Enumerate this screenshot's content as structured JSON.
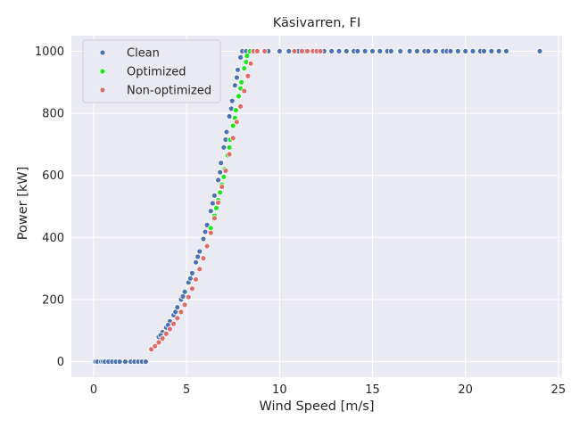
{
  "chart_data": {
    "type": "scatter",
    "title": "Käsivarren, FI",
    "xlabel": "Wind Speed [m/s]",
    "ylabel": "Power [kW]",
    "xlim": [
      -1.2,
      25.2
    ],
    "ylim": [
      -50,
      1050
    ],
    "x_ticks": [
      0,
      5,
      10,
      15,
      20,
      25
    ],
    "x_tick_labels": [
      "0",
      "5",
      "10",
      "15",
      "20",
      "25"
    ],
    "y_ticks": [
      0,
      200,
      400,
      600,
      800,
      1000
    ],
    "y_tick_labels": [
      "0",
      "200",
      "400",
      "600",
      "800",
      "1000"
    ],
    "grid": true,
    "legend_position": "top-left",
    "style": {
      "background": "#eaeaf2",
      "grid_color": "#ffffff",
      "marker_edge": "#ffffff"
    },
    "series": [
      {
        "name": "Clean",
        "color": "#4c72b0",
        "points": [
          [
            0.1,
            0
          ],
          [
            0.2,
            0
          ],
          [
            0.4,
            0
          ],
          [
            0.5,
            0
          ],
          [
            0.6,
            0
          ],
          [
            0.8,
            0
          ],
          [
            1.0,
            0
          ],
          [
            1.2,
            0
          ],
          [
            1.4,
            0
          ],
          [
            1.7,
            0
          ],
          [
            2.0,
            0
          ],
          [
            2.2,
            0
          ],
          [
            2.4,
            0
          ],
          [
            2.6,
            0
          ],
          [
            2.8,
            0
          ],
          [
            3.5,
            80
          ],
          [
            3.7,
            95
          ],
          [
            3.9,
            110
          ],
          [
            4.1,
            130
          ],
          [
            4.3,
            150
          ],
          [
            4.5,
            175
          ],
          [
            4.7,
            200
          ],
          [
            4.9,
            225
          ],
          [
            5.1,
            255
          ],
          [
            5.3,
            285
          ],
          [
            5.5,
            320
          ],
          [
            5.7,
            355
          ],
          [
            5.9,
            395
          ],
          [
            6.1,
            440
          ],
          [
            6.3,
            485
          ],
          [
            6.5,
            535
          ],
          [
            6.7,
            585
          ],
          [
            6.85,
            640
          ],
          [
            7.0,
            690
          ],
          [
            7.15,
            740
          ],
          [
            7.3,
            790
          ],
          [
            7.45,
            840
          ],
          [
            7.6,
            890
          ],
          [
            7.75,
            940
          ],
          [
            7.9,
            980
          ],
          [
            8.0,
            1000
          ],
          [
            3.6,
            85
          ],
          [
            4.0,
            118
          ],
          [
            4.4,
            160
          ],
          [
            4.8,
            210
          ],
          [
            5.2,
            268
          ],
          [
            5.6,
            338
          ],
          [
            6.0,
            418
          ],
          [
            6.4,
            510
          ],
          [
            6.8,
            610
          ],
          [
            7.1,
            715
          ],
          [
            7.4,
            815
          ],
          [
            7.7,
            915
          ],
          [
            8.2,
            1000
          ],
          [
            8.6,
            1000
          ],
          [
            9.4,
            1000
          ],
          [
            10.0,
            1000
          ],
          [
            10.5,
            1000
          ],
          [
            11.0,
            1000
          ],
          [
            11.3,
            1000
          ],
          [
            12.4,
            1000
          ],
          [
            12.8,
            1000
          ],
          [
            13.2,
            1000
          ],
          [
            13.6,
            1000
          ],
          [
            14.0,
            1000
          ],
          [
            14.2,
            1000
          ],
          [
            14.6,
            1000
          ],
          [
            15.0,
            1000
          ],
          [
            15.4,
            1000
          ],
          [
            15.8,
            1000
          ],
          [
            16.0,
            1000
          ],
          [
            16.5,
            1000
          ],
          [
            17.0,
            1000
          ],
          [
            17.4,
            1000
          ],
          [
            17.8,
            1000
          ],
          [
            18.0,
            1000
          ],
          [
            18.4,
            1000
          ],
          [
            18.8,
            1000
          ],
          [
            19.0,
            1000
          ],
          [
            19.2,
            1000
          ],
          [
            19.6,
            1000
          ],
          [
            20.0,
            1000
          ],
          [
            20.4,
            1000
          ],
          [
            20.8,
            1000
          ],
          [
            21.0,
            1000
          ],
          [
            21.4,
            1000
          ],
          [
            21.8,
            1000
          ],
          [
            22.2,
            1000
          ],
          [
            24.0,
            1000
          ]
        ]
      },
      {
        "name": "Optimized",
        "color": "#1fe51f",
        "points": [
          [
            6.3,
            430
          ],
          [
            6.5,
            470
          ],
          [
            6.7,
            520
          ],
          [
            6.9,
            570
          ],
          [
            7.05,
            620
          ],
          [
            7.2,
            665
          ],
          [
            7.35,
            715
          ],
          [
            7.5,
            760
          ],
          [
            7.65,
            810
          ],
          [
            7.8,
            855
          ],
          [
            7.95,
            900
          ],
          [
            8.1,
            945
          ],
          [
            8.25,
            985
          ],
          [
            8.4,
            1000
          ],
          [
            8.6,
            1000
          ],
          [
            8.8,
            1000
          ],
          [
            6.6,
            495
          ],
          [
            6.8,
            545
          ],
          [
            7.0,
            595
          ],
          [
            7.3,
            690
          ],
          [
            7.6,
            785
          ],
          [
            7.9,
            880
          ],
          [
            8.2,
            965
          ]
        ]
      },
      {
        "name": "Non-optimized",
        "color": "#dd6c6c",
        "points": [
          [
            3.1,
            40
          ],
          [
            3.3,
            50
          ],
          [
            3.5,
            62
          ],
          [
            3.7,
            75
          ],
          [
            3.9,
            90
          ],
          [
            4.1,
            105
          ],
          [
            4.3,
            122
          ],
          [
            4.5,
            140
          ],
          [
            4.7,
            160
          ],
          [
            4.9,
            183
          ],
          [
            5.1,
            208
          ],
          [
            5.3,
            235
          ],
          [
            5.5,
            265
          ],
          [
            5.7,
            298
          ],
          [
            5.9,
            333
          ],
          [
            6.1,
            372
          ],
          [
            6.3,
            415
          ],
          [
            6.5,
            462
          ],
          [
            6.7,
            512
          ],
          [
            6.9,
            563
          ],
          [
            7.1,
            615
          ],
          [
            7.3,
            668
          ],
          [
            7.5,
            720
          ],
          [
            7.7,
            772
          ],
          [
            7.9,
            822
          ],
          [
            8.1,
            872
          ],
          [
            8.3,
            920
          ],
          [
            8.45,
            960
          ],
          [
            8.6,
            1000
          ],
          [
            8.8,
            1000
          ],
          [
            9.2,
            1000
          ],
          [
            10.8,
            1000
          ],
          [
            11.2,
            1000
          ],
          [
            11.5,
            1000
          ],
          [
            11.8,
            1000
          ],
          [
            12.0,
            1000
          ],
          [
            12.2,
            1000
          ]
        ]
      }
    ]
  }
}
